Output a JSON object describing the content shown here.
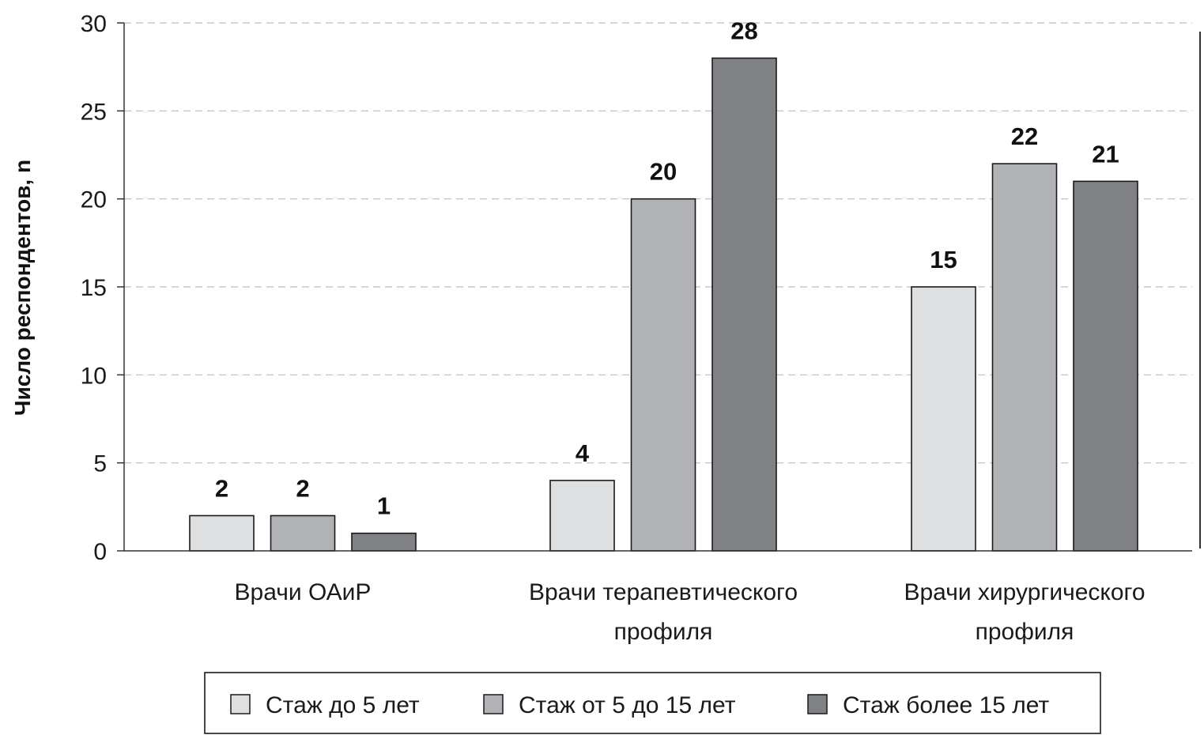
{
  "chart_data": {
    "type": "bar",
    "ylabel": "Число респондентов, n",
    "ylim": [
      0,
      30
    ],
    "yticks": [
      0,
      5,
      10,
      15,
      20,
      25,
      30
    ],
    "grid": true,
    "legend_position": "bottom",
    "categories": [
      [
        "Врачи ОАиР"
      ],
      [
        "Врачи терапевтического",
        "профиля"
      ],
      [
        "Врачи хирургического",
        "профиля"
      ]
    ],
    "series": [
      {
        "name": "Стаж до 5 лет",
        "values": [
          2,
          4,
          15
        ],
        "color": "#dedfe0"
      },
      {
        "name": "Стаж от 5 до 15 лет",
        "values": [
          2,
          20,
          22
        ],
        "color": "#b1b2b5"
      },
      {
        "name": "Стаж более 15 лет",
        "values": [
          1,
          28,
          21
        ],
        "color": "#808184"
      }
    ]
  }
}
